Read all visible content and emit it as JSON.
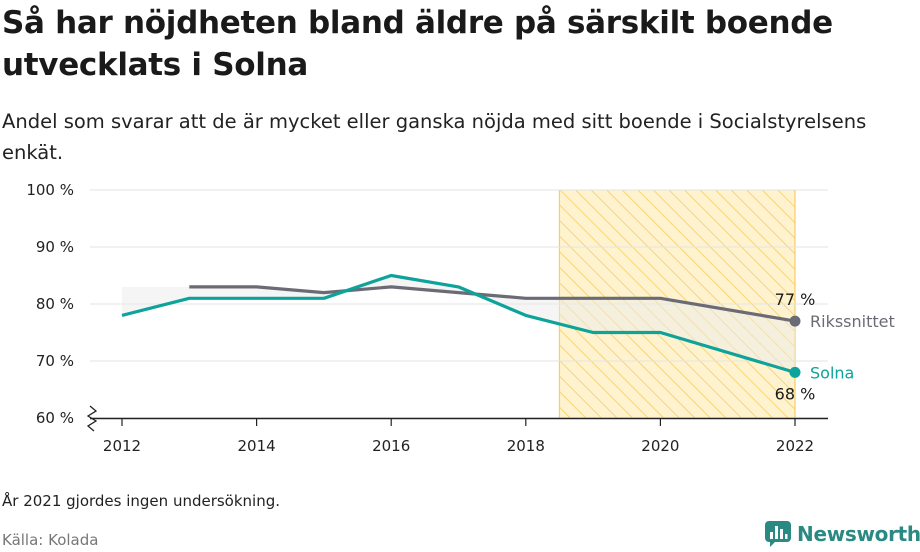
{
  "title": "Så har nöjdheten bland äldre på särskilt boende utvecklats i Solna",
  "subtitle": "Andel som svarar att de är mycket eller ganska nöjda med sitt boende i Socialstyrelsens enkät.",
  "note": "År 2021 gjordes ingen undersökning.",
  "source": "Källa: Kolada",
  "brand": {
    "name": "Newsworthy",
    "logo_icon": "bar-chart-speech-bubble-icon",
    "color": "#2a8a83"
  },
  "colors": {
    "solna": "#0ea39a",
    "riks": "#6b6b75",
    "highlight_fill": "#fff3cf",
    "highlight_hatch": "#f5cd60",
    "gap_fill": "#ececec",
    "grid": "#e3e3e3",
    "axis": "#222222"
  },
  "chart_data": {
    "type": "line",
    "x": [
      2012,
      2013,
      2014,
      2015,
      2016,
      2017,
      2018,
      2019,
      2020,
      2022
    ],
    "xticks": [
      "2012",
      "2014",
      "2016",
      "2018",
      "2020",
      "2022"
    ],
    "yticks": [
      "60 %",
      "70 %",
      "80 %",
      "90 %",
      "100 %"
    ],
    "ylim": [
      60,
      100
    ],
    "xlim": [
      2012,
      2022
    ],
    "y_axis_break": true,
    "grid": true,
    "highlight_range": [
      2018.5,
      2022
    ],
    "series": [
      {
        "name": "Rikssnittet",
        "x": [
          2013,
          2014,
          2015,
          2016,
          2017,
          2018,
          2019,
          2020,
          2022
        ],
        "values": [
          83,
          83,
          82,
          83,
          82,
          81,
          81,
          81,
          77
        ],
        "end_label": "77 %"
      },
      {
        "name": "Solna",
        "x": [
          2012,
          2013,
          2014,
          2015,
          2016,
          2017,
          2018,
          2019,
          2020,
          2022
        ],
        "values": [
          78,
          81,
          81,
          81,
          85,
          83,
          78,
          75,
          75,
          68
        ],
        "end_label": "68 %"
      }
    ]
  }
}
